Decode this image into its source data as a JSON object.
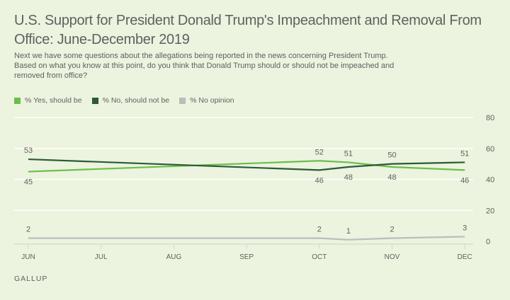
{
  "title": "U.S. Support for President Donald Trump's Impeachment and Removal From Office: June-December 2019",
  "subtitle": "Next we have some questions about the allegations being reported in the news concerning President Trump. Based on what you know at this point, do you think that Donald Trump should or should not be impeached and removed from office?",
  "source": "GALLUP",
  "chart_data": {
    "type": "line",
    "title": "U.S. Support for President Donald Trump's Impeachment and Removal From Office: June-December 2019",
    "xlabel": "",
    "ylabel": "",
    "ylim": [
      0,
      80
    ],
    "yticks": [
      0,
      20,
      40,
      60,
      80
    ],
    "xticks": [
      "JUN",
      "JUL",
      "AUG",
      "SEP",
      "OCT",
      "NOV",
      "DEC"
    ],
    "x": [
      0,
      4,
      4.4,
      5,
      6
    ],
    "grid": true,
    "legend": "top-left",
    "series": [
      {
        "name": "% Yes, should be",
        "color": "#6abf4b",
        "values": [
          45,
          52,
          51,
          48,
          46
        ],
        "label_pos": [
          "below",
          "above",
          "above",
          "below",
          "below"
        ]
      },
      {
        "name": "% No, should not be",
        "color": "#2b5a36",
        "values": [
          53,
          46,
          48,
          50,
          51
        ],
        "label_pos": [
          "above",
          "below",
          "below",
          "above",
          "above"
        ]
      },
      {
        "name": "% No opinion",
        "color": "#bcbcbc",
        "values": [
          2,
          2,
          1,
          2,
          3
        ],
        "label_pos": [
          "above",
          "above",
          "above",
          "above",
          "above"
        ]
      }
    ]
  }
}
